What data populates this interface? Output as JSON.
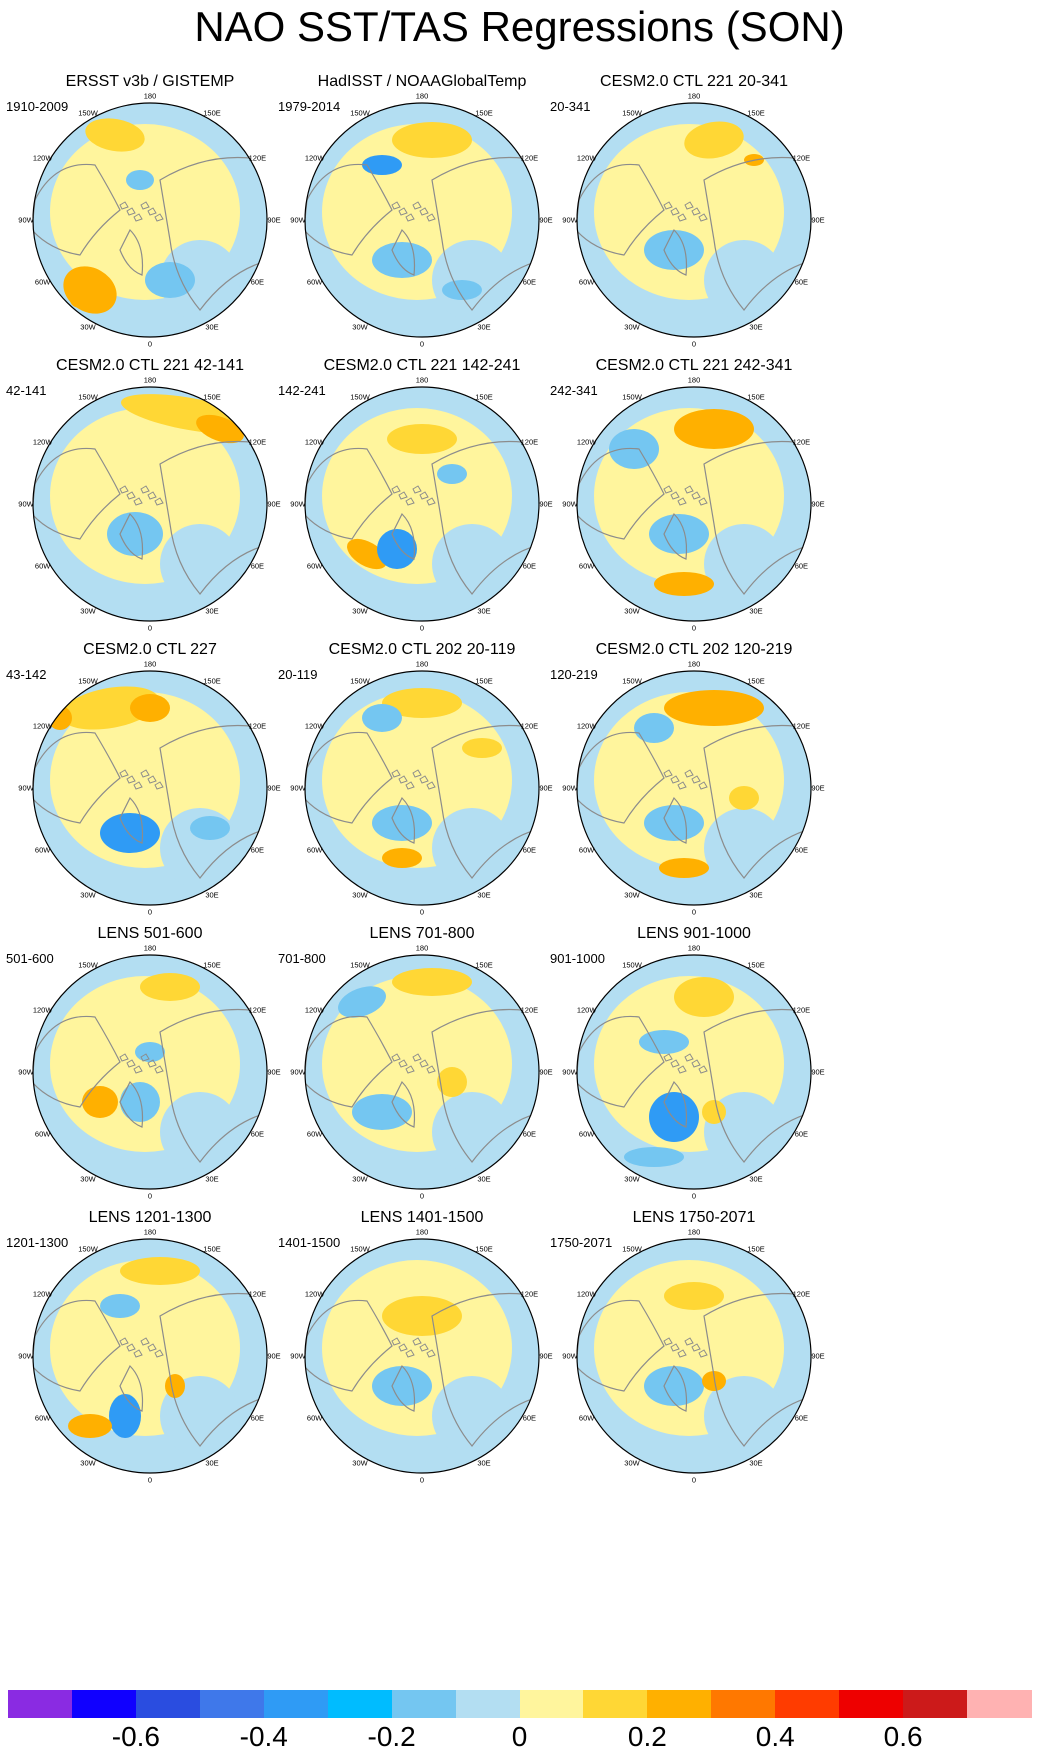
{
  "title": "NAO SST/TAS Regressions (SON)",
  "map_labels": {
    "lon_180": "180",
    "lon_150e": "150E",
    "lon_120e": "120E",
    "lon_90e": "90E",
    "lon_60e": "60E",
    "lon_30e": "30E",
    "lon_0": "0",
    "lon_30w": "30W",
    "lon_60w": "60W",
    "lon_90w": "90W",
    "lon_120w": "120W",
    "lon_150w": "150W"
  },
  "panels": [
    {
      "title": "ERSST v3b / GISTEMP",
      "period": "1910-2009"
    },
    {
      "title": "HadISST / NOAAGlobalTemp",
      "period": "1979-2014"
    },
    {
      "title": "CESM2.0 CTL 221 20-341",
      "period": "20-341"
    },
    {
      "title": "CESM2.0 CTL 221 42-141",
      "period": "42-141"
    },
    {
      "title": "CESM2.0 CTL 221 142-241",
      "period": "142-241"
    },
    {
      "title": "CESM2.0 CTL 221 242-341",
      "period": "242-341"
    },
    {
      "title": "CESM2.0 CTL 227",
      "period": "43-142"
    },
    {
      "title": "CESM2.0 CTL 202 20-119",
      "period": "20-119"
    },
    {
      "title": "CESM2.0 CTL 202 120-219",
      "period": "120-219"
    },
    {
      "title": "LENS 501-600",
      "period": "501-600"
    },
    {
      "title": "LENS 701-800",
      "period": "701-800"
    },
    {
      "title": "LENS 901-1000",
      "period": "901-1000"
    },
    {
      "title": "LENS 1201-1300",
      "period": "1201-1300"
    },
    {
      "title": "LENS 1401-1500",
      "period": "1401-1500"
    },
    {
      "title": "LENS 1750-2071",
      "period": "1750-2071"
    }
  ],
  "colorbar": {
    "colors": [
      "#8a2be2",
      "#1000ff",
      "#2a4de0",
      "#3f78ea",
      "#2f9bf5",
      "#00bcff",
      "#74c6f1",
      "#b3def2",
      "#fff59d",
      "#ffd735",
      "#ffb000",
      "#ff7800",
      "#ff3c00",
      "#ee0000",
      "#cc1a1a",
      "#ffb2b2"
    ],
    "tick_labels": [
      "-0.6",
      "-0.4",
      "-0.2",
      "0",
      "0.2",
      "0.4",
      "0.6"
    ]
  },
  "palette": {
    "land": "#ffffff",
    "coast": "#8c8c8c",
    "neutral_cool": "#b3def2",
    "neutral_warm": "#fff59d",
    "warm": "#ffd735",
    "orange": "#ffb000",
    "cool": "#74c6f1",
    "cold": "#2f9bf5"
  }
}
